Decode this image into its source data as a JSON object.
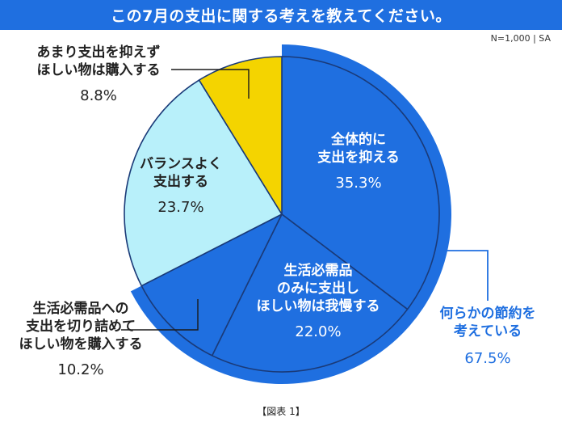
{
  "header": {
    "title": "この7月の支出に関する考えを教えてください。",
    "sample_note": "N=1,000 | SA",
    "caption": "【図表 1】"
  },
  "colors": {
    "blue": "#1f6fe0",
    "light_blue": "#b8f0fa",
    "yellow": "#f4d400",
    "outline": "#1a3a78"
  },
  "chart_data": {
    "type": "pie",
    "start_angle_deg": 0,
    "direction": "clockwise",
    "slices": [
      {
        "label_lines": [
          "全体的に",
          "支出を抑える"
        ],
        "value_label": "35.3%",
        "value": 35.3,
        "color": "blue",
        "group": "節約"
      },
      {
        "label_lines": [
          "生活必需品",
          "のみに支出し",
          "ほしい物は我慢する"
        ],
        "value_label": "22.0%",
        "value": 22.0,
        "color": "blue",
        "group": "節約"
      },
      {
        "label_lines": [
          "生活必需品への",
          "支出を切り詰めて",
          "ほしい物を購入する"
        ],
        "value_label": "10.2%",
        "value": 10.2,
        "color": "blue",
        "group": "節約"
      },
      {
        "label_lines": [
          "バランスよく",
          "支出する"
        ],
        "value_label": "23.7%",
        "value": 23.7,
        "color": "light_blue",
        "group": null
      },
      {
        "label_lines": [
          "あまり支出を抑えず",
          "ほしい物は購入する"
        ],
        "value_label": "8.8%",
        "value": 8.8,
        "color": "yellow",
        "group": null
      }
    ],
    "group_annotation": {
      "label_lines": [
        "何らかの節約を",
        "考えている"
      ],
      "value_label": "67.5%",
      "value": 67.5
    }
  }
}
